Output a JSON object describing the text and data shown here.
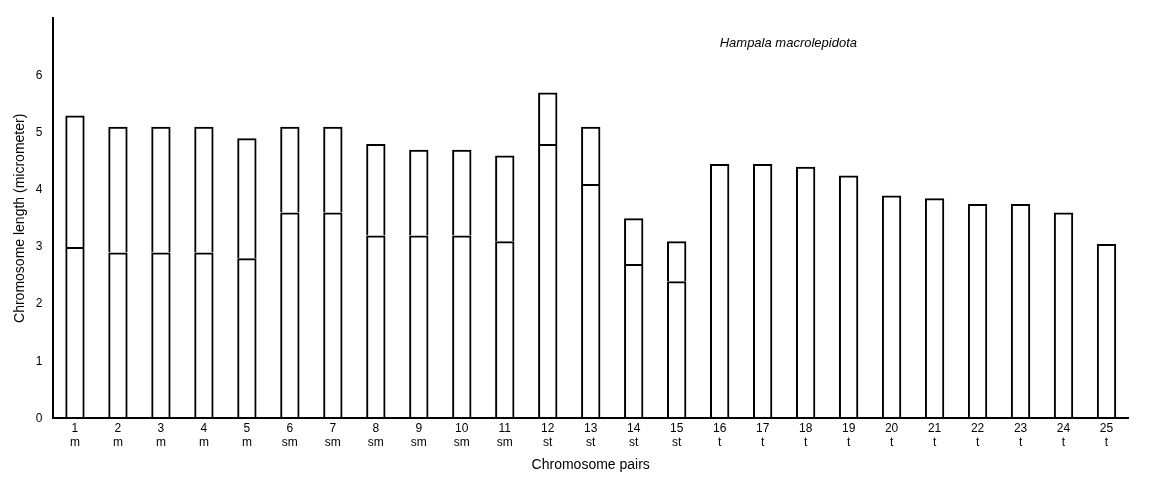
{
  "chart_data": {
    "type": "bar",
    "title": "Hampala macrolepidota",
    "xlabel": "Chromosome pairs",
    "ylabel": "Chromosome length (micrometer)",
    "categories": [
      "1\nm",
      "2\nm",
      "3\nm",
      "4\nm",
      "5\nm",
      "6\nsm",
      "7\nsm",
      "8\nsm",
      "9\nsm",
      "10\nsm",
      "11\nsm",
      "12\nst",
      "13\nst",
      "14\nst",
      "15\nst",
      "16\nt",
      "17\nt",
      "18\nt",
      "19\nt",
      "20\nt",
      "21\nt",
      "22\nt",
      "23\nt",
      "24\nt",
      "25\nt"
    ],
    "stacked": true,
    "series": [
      {
        "color": "#000000",
        "values": [
          3.0,
          2.9,
          2.9,
          2.9,
          2.8,
          3.6,
          3.6,
          3.2,
          3.2,
          3.2,
          3.1,
          4.8,
          4.1,
          2.7,
          2.4,
          4.45,
          4.45,
          4.4,
          4.25,
          3.9,
          3.85,
          3.75,
          3.75,
          3.6,
          3.05
        ]
      },
      {
        "color": "#000000",
        "values": [
          2.3,
          2.2,
          2.2,
          2.2,
          2.1,
          1.5,
          1.5,
          1.6,
          1.5,
          1.5,
          1.5,
          0.9,
          1.0,
          0.8,
          0.7,
          null,
          null,
          null,
          null,
          null,
          null,
          null,
          null,
          null,
          null
        ]
      }
    ],
    "ylim": [
      0,
      7
    ],
    "yticks": [
      0,
      1,
      2,
      3,
      4,
      5,
      6
    ],
    "grid": false,
    "legend": false
  }
}
